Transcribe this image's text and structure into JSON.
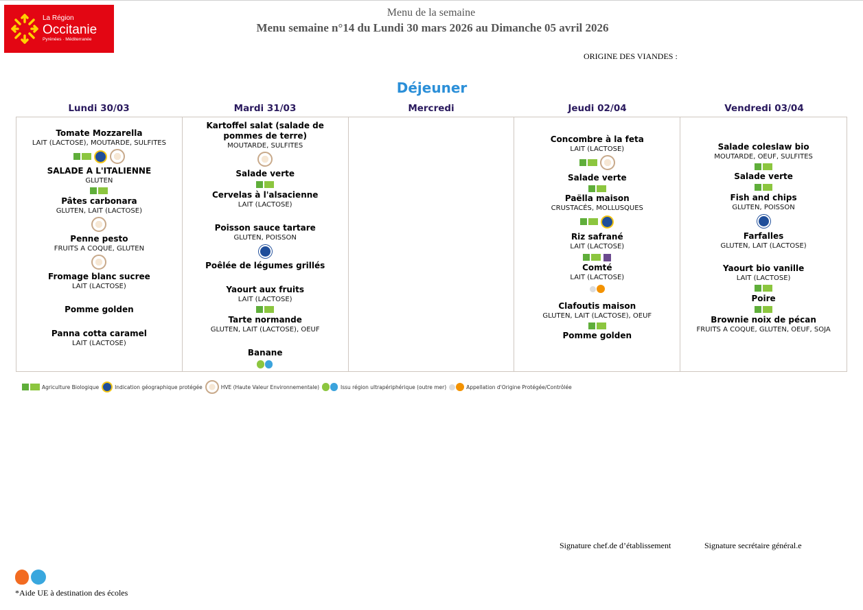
{
  "header": {
    "logo": {
      "line1": "La Région",
      "line2": "Occitanie",
      "line3": "Pyrénées · Méditerranée"
    },
    "title": "Menu de la semaine",
    "subtitle": "Menu semaine n°14 du Lundi 30 mars 2026 au Dimanche 05 avril 2026",
    "origin_label": "ORIGINE DES VIANDES :"
  },
  "meal": "Déjeuner",
  "days": [
    {
      "label": "Lundi 30/03",
      "items": [
        {
          "name": "Tomate Mozzarella",
          "allergens": "LAIT (LACTOSE), MOUTARDE, SULFITES",
          "badges": [
            "ab-icon",
            "igp-icon",
            "hve-icon"
          ]
        },
        {
          "name": "SALADE A L'ITALIENNE",
          "allergens": "GLUTEN",
          "badges": [
            "ab-icon"
          ]
        },
        {
          "name": "Pâtes carbonara",
          "allergens": "GLUTEN, LAIT (LACTOSE)",
          "badges": [
            "hve-icon"
          ]
        },
        {
          "name": "Penne pesto",
          "allergens": "FRUITS A COQUE, GLUTEN",
          "badges": [
            "hve-icon"
          ]
        },
        {
          "name": "Fromage blanc sucree",
          "allergens": "LAIT (LACTOSE)",
          "badges": []
        },
        {
          "name": "Pomme golden",
          "allergens": "",
          "badges": []
        },
        {
          "name": "Panna cotta caramel",
          "allergens": "LAIT (LACTOSE)",
          "badges": []
        }
      ]
    },
    {
      "label": "Mardi 31/03",
      "items": [
        {
          "name": "Kartoffel salat (salade de pommes de terre)",
          "allergens": "MOUTARDE, SULFITES",
          "badges": [
            "hve-icon"
          ]
        },
        {
          "name": "Salade verte",
          "allergens": "",
          "badges": [
            "ab-icon"
          ]
        },
        {
          "name": "Cervelas à l'alsacienne",
          "allergens": "LAIT (LACTOSE)",
          "badges": []
        },
        {
          "name": "Poisson sauce tartare",
          "allergens": "GLUTEN, POISSON",
          "badges": [
            "msc-icon"
          ]
        },
        {
          "name": "Poêlée de légumes grillés",
          "allergens": "",
          "badges": []
        },
        {
          "name": "Yaourt aux fruits",
          "allergens": "LAIT (LACTOSE)",
          "badges": [
            "ab-icon"
          ]
        },
        {
          "name": "Tarte normande",
          "allergens": "GLUTEN, LAIT (LACTOSE), OEUF",
          "badges": []
        },
        {
          "name": "Banane",
          "allergens": "",
          "badges": [
            "rup-icon"
          ]
        }
      ]
    },
    {
      "label": "Mercredi",
      "items": []
    },
    {
      "label": "Jeudi 02/04",
      "items": [
        {
          "name": "Concombre à la feta",
          "allergens": "LAIT (LACTOSE)",
          "badges": [
            "ab-icon",
            "hve-icon"
          ]
        },
        {
          "name": "Salade verte",
          "allergens": "",
          "badges": [
            "ab-icon"
          ]
        },
        {
          "name": "Paëlla maison",
          "allergens": "CRUSTACÉS, MOLLUSQUES",
          "badges": [
            "ab-icon",
            "igp-icon"
          ]
        },
        {
          "name": "Riz safrané",
          "allergens": "LAIT (LACTOSE)",
          "badges": [
            "ab-icon",
            "label-rouge-icon"
          ]
        },
        {
          "name": "Comté",
          "allergens": "LAIT (LACTOSE)",
          "badges": [
            "aop-icon"
          ]
        },
        {
          "name": "Clafoutis maison",
          "allergens": "GLUTEN, LAIT (LACTOSE), OEUF",
          "badges": [
            "ab-icon"
          ]
        },
        {
          "name": "Pomme golden",
          "allergens": "",
          "badges": []
        }
      ]
    },
    {
      "label": "Vendredi 03/04",
      "items": [
        {
          "name": "Salade coleslaw bio",
          "allergens": "MOUTARDE, OEUF, SULFITES",
          "badges": [
            "ab-icon"
          ]
        },
        {
          "name": "Salade verte",
          "allergens": "",
          "badges": [
            "ab-icon"
          ]
        },
        {
          "name": "Fish and chips",
          "allergens": "GLUTEN, POISSON",
          "badges": [
            "msc-icon"
          ]
        },
        {
          "name": "Farfalles",
          "allergens": "GLUTEN, LAIT (LACTOSE)",
          "badges": []
        },
        {
          "name": "Yaourt bio vanille",
          "allergens": "LAIT (LACTOSE)",
          "badges": [
            "ab-icon"
          ]
        },
        {
          "name": "Poire",
          "allergens": "",
          "badges": [
            "ab-icon"
          ]
        },
        {
          "name": "Brownie noix de pécan",
          "allergens": "FRUITS A COQUE, GLUTEN, OEUF, SOJA",
          "badges": []
        }
      ]
    }
  ],
  "legend": [
    {
      "icon": "ab-icon",
      "label": "Agriculture Biologique"
    },
    {
      "icon": "igp-icon",
      "label": "Indication géographique protégée"
    },
    {
      "icon": "hve-icon",
      "label": "HVE (Haute Valeur Environnementale)"
    },
    {
      "icon": "rup-icon",
      "label": "Issu région ultrapériphérique (outre mer)"
    },
    {
      "icon": "aop-icon",
      "label": "Appellation d'Origine Protégée/Contrôlée"
    }
  ],
  "footer": {
    "signature_chef": "Signature chef.de d’établissement",
    "signature_secretaire": "Signature secrétaire général.e",
    "footnote": "*Aide UE à destination des écoles"
  }
}
